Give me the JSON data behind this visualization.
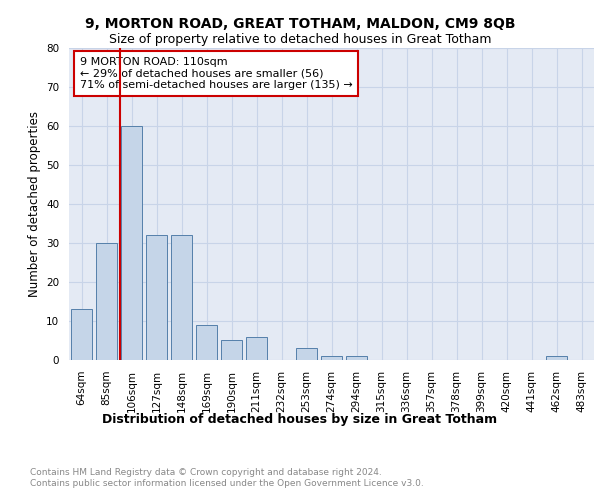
{
  "title1": "9, MORTON ROAD, GREAT TOTHAM, MALDON, CM9 8QB",
  "title2": "Size of property relative to detached houses in Great Totham",
  "xlabel": "Distribution of detached houses by size in Great Totham",
  "ylabel": "Number of detached properties",
  "categories": [
    "64sqm",
    "85sqm",
    "106sqm",
    "127sqm",
    "148sqm",
    "169sqm",
    "190sqm",
    "211sqm",
    "232sqm",
    "253sqm",
    "274sqm",
    "294sqm",
    "315sqm",
    "336sqm",
    "357sqm",
    "378sqm",
    "399sqm",
    "420sqm",
    "441sqm",
    "462sqm",
    "483sqm"
  ],
  "values": [
    13,
    30,
    60,
    32,
    32,
    9,
    5,
    6,
    0,
    3,
    1,
    1,
    0,
    0,
    0,
    0,
    0,
    0,
    0,
    1,
    0
  ],
  "bar_color": "#c5d5e8",
  "bar_edge_color": "#5580aa",
  "vline_color": "#cc0000",
  "annotation_text": "9 MORTON ROAD: 110sqm\n← 29% of detached houses are smaller (56)\n71% of semi-detached houses are larger (135) →",
  "annotation_box_color": "#ffffff",
  "annotation_box_edge": "#cc0000",
  "ylim": [
    0,
    80
  ],
  "yticks": [
    0,
    10,
    20,
    30,
    40,
    50,
    60,
    70,
    80
  ],
  "grid_color": "#c8d4e8",
  "background_color": "#e4eaf4",
  "footer": "Contains HM Land Registry data © Crown copyright and database right 2024.\nContains public sector information licensed under the Open Government Licence v3.0.",
  "title1_fontsize": 10,
  "title2_fontsize": 9,
  "xlabel_fontsize": 9,
  "ylabel_fontsize": 8.5,
  "tick_fontsize": 7.5,
  "annotation_fontsize": 8,
  "footer_fontsize": 6.5
}
